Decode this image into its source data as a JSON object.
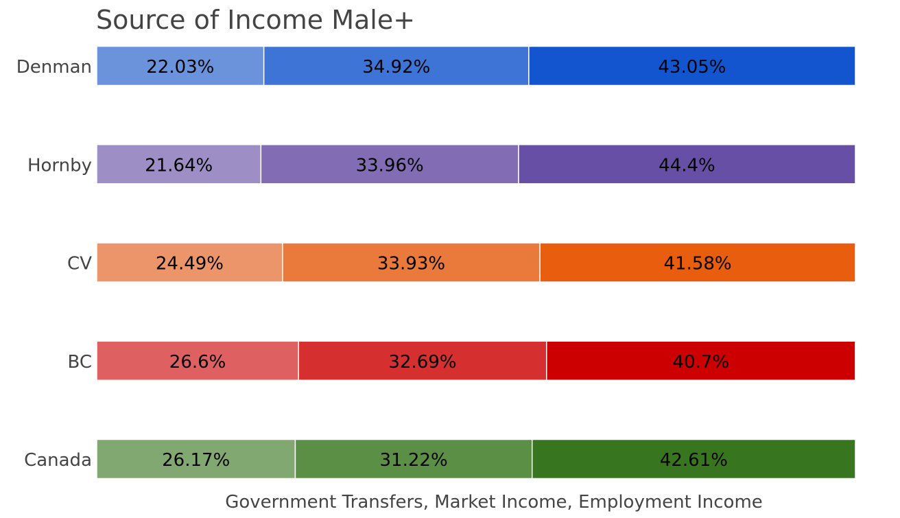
{
  "chart_data": {
    "type": "bar",
    "orientation": "horizontal",
    "stacked": true,
    "normalized": true,
    "title": "Source of Income Male+",
    "xlabel": "Government Transfers, Market Income, Employment Income",
    "ylabel": "",
    "xlim": [
      0,
      100
    ],
    "grid": false,
    "legend": "none",
    "categories": [
      "Denman",
      "Hornby",
      "CV",
      "BC",
      "Canada"
    ],
    "segments": [
      "Government Transfers",
      "Market Income",
      "Employment Income"
    ],
    "rows": [
      {
        "category": "Denman",
        "values": [
          22.03,
          34.92,
          43.05
        ],
        "labels": [
          "22.03%",
          "34.92%",
          "43.05%"
        ],
        "colors": [
          "#6a93dc",
          "#3d74d6",
          "#1255cf"
        ]
      },
      {
        "category": "Hornby",
        "values": [
          21.64,
          33.96,
          44.4
        ],
        "labels": [
          "21.64%",
          "33.96%",
          "44.4%"
        ],
        "colors": [
          "#9d8fc5",
          "#826db4",
          "#674fa5"
        ]
      },
      {
        "category": "CV",
        "values": [
          24.49,
          33.93,
          41.58
        ],
        "labels": [
          "24.49%",
          "33.93%",
          "41.58%"
        ],
        "colors": [
          "#ec956b",
          "#ea7a3c",
          "#e85d0e"
        ]
      },
      {
        "category": "BC",
        "values": [
          26.6,
          32.69,
          40.7
        ],
        "labels": [
          "26.6%",
          "32.69%",
          "40.7%"
        ],
        "colors": [
          "#de6060",
          "#d52f30",
          "#cc0000"
        ]
      },
      {
        "category": "Canada",
        "values": [
          26.17,
          31.22,
          42.61
        ],
        "labels": [
          "26.17%",
          "31.22%",
          "42.61%"
        ],
        "colors": [
          "#80a870",
          "#5a8f45",
          "#37761e"
        ]
      }
    ]
  }
}
